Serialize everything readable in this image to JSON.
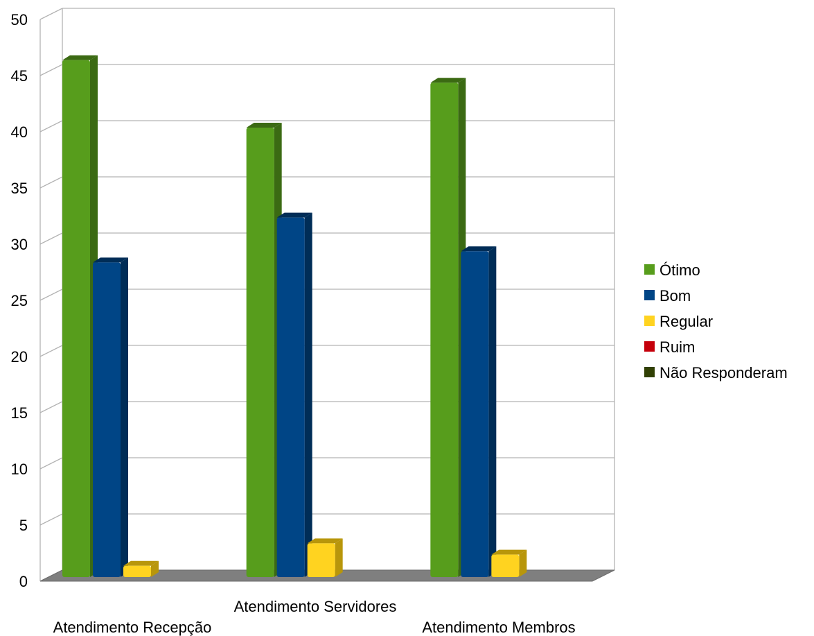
{
  "chart_data": {
    "type": "bar",
    "categories": [
      "Atendimento Recepção",
      "Atendimento Servidores",
      "Atendimento Membros"
    ],
    "series": [
      {
        "name": "Ótimo",
        "values": [
          46,
          40,
          44
        ],
        "color": "#579d1c",
        "side_color": "#3b6a13"
      },
      {
        "name": "Bom",
        "values": [
          28,
          32,
          29
        ],
        "color": "#004586",
        "side_color": "#002d57"
      },
      {
        "name": "Regular",
        "values": [
          1,
          3,
          2
        ],
        "color": "#ffd320",
        "side_color": "#b8960b"
      },
      {
        "name": "Ruim",
        "values": [
          0,
          0,
          0
        ],
        "color": "#c5000b",
        "side_color": "#850007"
      },
      {
        "name": "Não Responderam",
        "values": [
          0,
          0,
          0
        ],
        "color": "#314004",
        "side_color": "#1f2902"
      }
    ],
    "ylim": [
      0,
      50
    ],
    "yticks": [
      0,
      5,
      10,
      15,
      20,
      25,
      30,
      35,
      40,
      45,
      50
    ],
    "grid": true,
    "legend_position": "right",
    "style": "3d"
  }
}
